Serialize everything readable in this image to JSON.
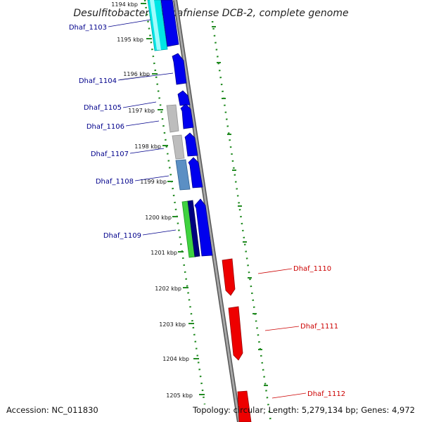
{
  "title": "Desulfitobacterium hafniense DCB-2, complete genome",
  "footer": {
    "accession": "Accession: NC_011830",
    "summary": "Topology: circular; Length: 5,279,134 bp; Genes: 4,972"
  },
  "colors": {
    "backbone": "#808080",
    "forward_gene": "#0000ff",
    "reverse_gene": "#ff0000",
    "forward_label": "#00008b",
    "reverse_label": "#cc0000",
    "cds_class_cyan": "#00ffff",
    "cds_class_grey": "#b0b0b0",
    "cds_class_steelblue": "#4682b4",
    "cds_class_green": "#33cc33",
    "cds_class_navy": "#000080",
    "tick_marks": "#228b22"
  },
  "ticks": [
    {
      "label": "1194 kbp"
    },
    {
      "label": "1195 kbp"
    },
    {
      "label": "1196 kbp"
    },
    {
      "label": "1197 kbp"
    },
    {
      "label": "1198 kbp"
    },
    {
      "label": "1199 kbp"
    },
    {
      "label": "1200 kbp"
    },
    {
      "label": "1201 kbp"
    },
    {
      "label": "1202 kbp"
    },
    {
      "label": "1203 kbp"
    },
    {
      "label": "1204 kbp"
    },
    {
      "label": "1205 kbp"
    }
  ],
  "genes": [
    {
      "label": "Dhaf_1103",
      "strand": "forward"
    },
    {
      "label": "Dhaf_1104",
      "strand": "forward"
    },
    {
      "label": "Dhaf_1105",
      "strand": "forward"
    },
    {
      "label": "Dhaf_1106",
      "strand": "forward"
    },
    {
      "label": "Dhaf_1107",
      "strand": "forward"
    },
    {
      "label": "Dhaf_1108",
      "strand": "forward"
    },
    {
      "label": "Dhaf_1109",
      "strand": "forward"
    },
    {
      "label": "Dhaf_1110",
      "strand": "reverse"
    },
    {
      "label": "Dhaf_1111",
      "strand": "reverse"
    },
    {
      "label": "Dhaf_1112",
      "strand": "reverse"
    }
  ]
}
